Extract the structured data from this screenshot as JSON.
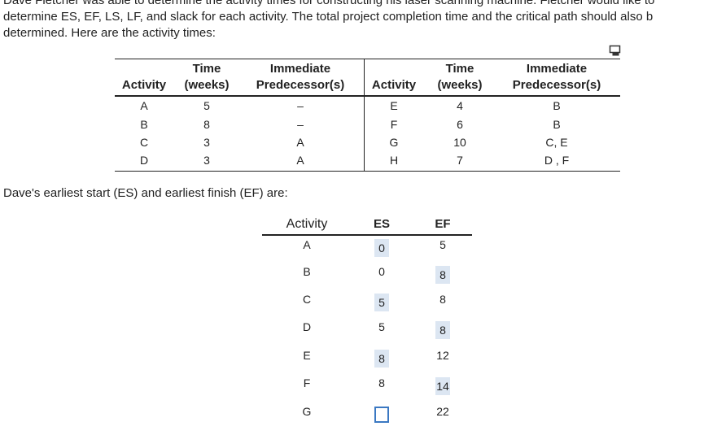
{
  "intro": {
    "lines": [
      "Dave Fletcher was able to determine the activity times for constructing his laser scanning machine. Fletcher would like to",
      "determine ES, EF, LS, LF, and slack for each activity. The total project completion time and the critical path should also b",
      "determined. Here are the activity times:"
    ]
  },
  "table1": {
    "header_top": [
      "Time",
      "Immediate",
      "Time",
      "Immediate"
    ],
    "header_bottom": [
      "Activity",
      "(weeks)",
      "Predecessor(s)",
      "Activity",
      "(weeks)",
      "Predecessor(s)"
    ],
    "rows": [
      [
        "A",
        "5",
        "–",
        "E",
        "4",
        "B"
      ],
      [
        "B",
        "8",
        "–",
        "F",
        "6",
        "B"
      ],
      [
        "C",
        "3",
        "A",
        "G",
        "10",
        "C, E"
      ],
      [
        "D",
        "3",
        "A",
        "H",
        "7",
        "D , F"
      ]
    ]
  },
  "table2": {
    "caption": "Dave's earliest start (ES) and earliest finish (EF) are:",
    "header": [
      "Activity",
      "ES",
      "EF"
    ],
    "rows": [
      {
        "activity": "A",
        "es": "0",
        "ef": "5",
        "answer_field": "es"
      },
      {
        "activity": "B",
        "es": "0",
        "ef": "8",
        "answer_field": "ef"
      },
      {
        "activity": "C",
        "es": "5",
        "ef": "8",
        "answer_field": "es"
      },
      {
        "activity": "D",
        "es": "5",
        "ef": "8",
        "answer_field": "ef"
      },
      {
        "activity": "E",
        "es": "8",
        "ef": "12",
        "answer_field": "es"
      },
      {
        "activity": "F",
        "es": "8",
        "ef": "14",
        "answer_field": "ef"
      },
      {
        "activity": "G",
        "ef": "22",
        "answer_field": "es"
      }
    ]
  }
}
